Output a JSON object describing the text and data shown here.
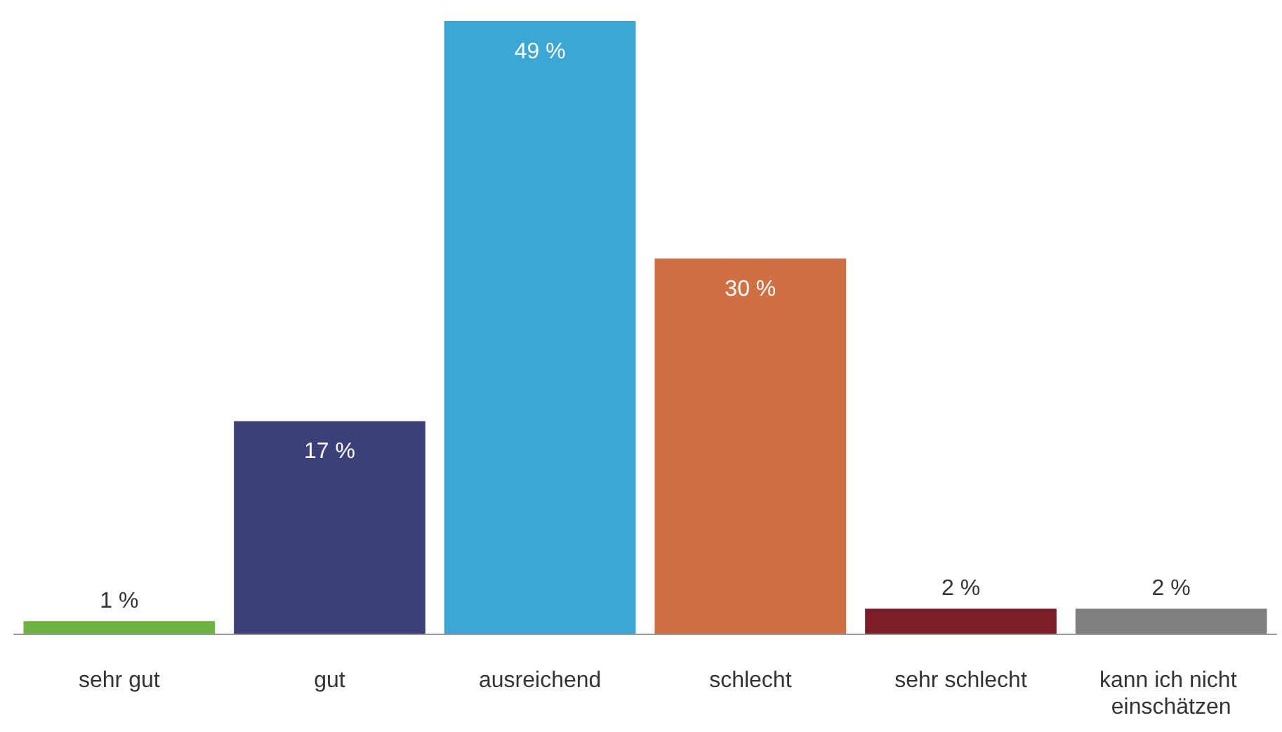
{
  "chart_data": {
    "type": "bar",
    "categories": [
      "sehr gut",
      "gut",
      "ausreichend",
      "schlecht",
      "sehr schlecht",
      "kann ich nicht einschätzen"
    ],
    "values": [
      1,
      17,
      49,
      30,
      2,
      2
    ],
    "colors": [
      "#6db33f",
      "#3b3f7a",
      "#3ba7d4",
      "#d07042",
      "#7d1d28",
      "#7f7f7f"
    ],
    "value_labels": [
      "1 %",
      "17 %",
      "49 %",
      "30 %",
      "2 %",
      "2 %"
    ]
  }
}
